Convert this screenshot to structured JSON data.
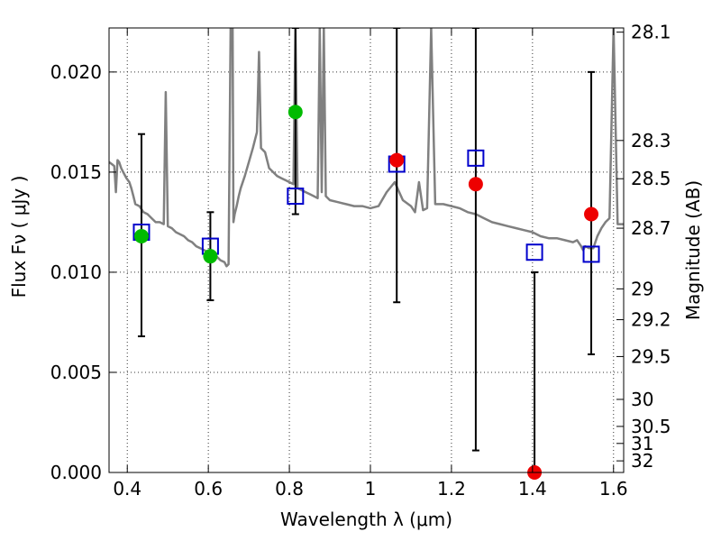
{
  "chart_data": {
    "type": "scatter",
    "xlabel": "Wavelength  λ (μm)",
    "ylabel": "Flux  Fν  ( μJy )",
    "ylabel_right": "Magnitude (AB)",
    "xlim": [
      0.355,
      1.625
    ],
    "ylim": [
      0.0,
      0.0222
    ],
    "grid": true,
    "x_ticks": [
      0.4,
      0.6,
      0.8,
      1.0,
      1.2,
      1.4,
      1.6
    ],
    "x_tick_labels": [
      "0.4",
      "0.6",
      "0.8",
      "1",
      "1.2",
      "1.4",
      "1.6"
    ],
    "y_ticks": [
      0.0,
      0.005,
      0.01,
      0.015,
      0.02
    ],
    "y_tick_labels": [
      "0.000",
      "0.005",
      "0.010",
      "0.015",
      "0.020"
    ],
    "right_ticks": [
      {
        "flux": 0.02199,
        "label": "28.1"
      },
      {
        "flux": 0.01658,
        "label": "28.3"
      },
      {
        "flux": 0.01467,
        "label": "28.5"
      },
      {
        "flux": 0.0122,
        "label": "28.7"
      },
      {
        "flux": 0.00917,
        "label": "29"
      },
      {
        "flux": 0.00763,
        "label": "29.2"
      },
      {
        "flux": 0.00579,
        "label": "29.5"
      },
      {
        "flux": 0.00365,
        "label": "30"
      },
      {
        "flux": 0.0023,
        "label": "30.5"
      },
      {
        "flux": 0.00145,
        "label": "31"
      },
      {
        "flux": 0.00058,
        "label": "32"
      }
    ],
    "colors": {
      "spectrum": "#808080",
      "model_squares": "#0000cc",
      "measured_green": "#00bb00",
      "measured_red": "#ee0000",
      "errorbar": "#000000",
      "grid": "#333333"
    },
    "series": [
      {
        "marker": "line",
        "x": [
          0.355,
          0.362,
          0.368,
          0.372,
          0.376,
          0.38,
          0.385,
          0.39,
          0.398,
          0.405,
          0.41,
          0.415,
          0.42,
          0.43,
          0.44,
          0.45,
          0.46,
          0.47,
          0.48,
          0.49,
          0.495,
          0.5,
          0.51,
          0.52,
          0.53,
          0.54,
          0.55,
          0.56,
          0.57,
          0.58,
          0.59,
          0.6,
          0.61,
          0.62,
          0.63,
          0.64,
          0.645,
          0.65,
          0.655,
          0.66,
          0.662,
          0.665,
          0.67,
          0.675,
          0.68,
          0.69,
          0.7,
          0.71,
          0.72,
          0.725,
          0.73,
          0.74,
          0.75,
          0.76,
          0.77,
          0.78,
          0.79,
          0.8,
          0.81,
          0.815,
          0.82,
          0.83,
          0.84,
          0.85,
          0.86,
          0.87,
          0.875,
          0.88,
          0.885,
          0.89,
          0.9,
          0.92,
          0.94,
          0.96,
          0.98,
          1.0,
          1.02,
          1.04,
          1.06,
          1.08,
          1.1,
          1.11,
          1.12,
          1.13,
          1.14,
          1.15,
          1.16,
          1.18,
          1.2,
          1.22,
          1.24,
          1.26,
          1.28,
          1.3,
          1.32,
          1.34,
          1.36,
          1.38,
          1.4,
          1.42,
          1.44,
          1.46,
          1.48,
          1.5,
          1.51,
          1.52,
          1.525,
          1.53,
          1.54,
          1.55,
          1.56,
          1.57,
          1.58,
          1.59,
          1.6,
          1.61,
          1.625
        ],
        "y": [
          0.0155,
          0.0154,
          0.0153,
          0.014,
          0.0156,
          0.0155,
          0.0152,
          0.015,
          0.0147,
          0.0145,
          0.0142,
          0.0138,
          0.0134,
          0.0133,
          0.013,
          0.0129,
          0.0127,
          0.0125,
          0.0125,
          0.0124,
          0.019,
          0.0123,
          0.0122,
          0.012,
          0.0119,
          0.0118,
          0.0116,
          0.0115,
          0.0113,
          0.0112,
          0.0111,
          0.011,
          0.0109,
          0.0108,
          0.0106,
          0.0105,
          0.0103,
          0.0104,
          0.0222,
          0.0222,
          0.0125,
          0.0129,
          0.0133,
          0.0138,
          0.0142,
          0.0148,
          0.0155,
          0.0162,
          0.017,
          0.021,
          0.0162,
          0.016,
          0.0152,
          0.015,
          0.0148,
          0.0147,
          0.0146,
          0.0145,
          0.0144,
          0.0222,
          0.0142,
          0.0141,
          0.014,
          0.0139,
          0.0138,
          0.0137,
          0.0222,
          0.014,
          0.0222,
          0.0138,
          0.0136,
          0.0135,
          0.0134,
          0.0133,
          0.0133,
          0.0132,
          0.0133,
          0.014,
          0.0145,
          0.0136,
          0.0133,
          0.013,
          0.0145,
          0.0131,
          0.0132,
          0.0222,
          0.0134,
          0.0134,
          0.0133,
          0.0132,
          0.013,
          0.0129,
          0.0127,
          0.0125,
          0.0124,
          0.0123,
          0.0122,
          0.0121,
          0.012,
          0.0118,
          0.0117,
          0.0117,
          0.0116,
          0.0115,
          0.0116,
          0.0113,
          0.0111,
          0.0113,
          0.0112,
          0.0112,
          0.0118,
          0.0122,
          0.0125,
          0.0127,
          0.0222,
          0.0124,
          0.0124
        ]
      },
      {
        "marker": "square",
        "x": [
          0.435,
          0.605,
          0.815,
          1.065,
          1.26,
          1.405,
          1.545
        ],
        "y": [
          0.012,
          0.0113,
          0.0138,
          0.0154,
          0.0157,
          0.011,
          0.0109
        ]
      },
      {
        "marker": "circle",
        "x": [
          0.435,
          0.605,
          0.815
        ],
        "y": [
          0.0118,
          0.0108,
          0.018
        ],
        "yerr": [
          [
            0.0068,
            0.0169
          ],
          [
            0.0086,
            0.013
          ],
          [
            0.0129,
            0.0222
          ]
        ]
      },
      {
        "marker": "circle",
        "x": [
          1.065,
          1.26,
          1.405,
          1.545
        ],
        "y": [
          0.0156,
          0.0144,
          0.0,
          0.0129
        ],
        "yerr": [
          [
            0.0085,
            0.0222
          ],
          [
            0.0011,
            0.0222
          ],
          [
            0.0,
            0.01
          ],
          [
            0.0059,
            0.02
          ]
        ]
      }
    ]
  }
}
